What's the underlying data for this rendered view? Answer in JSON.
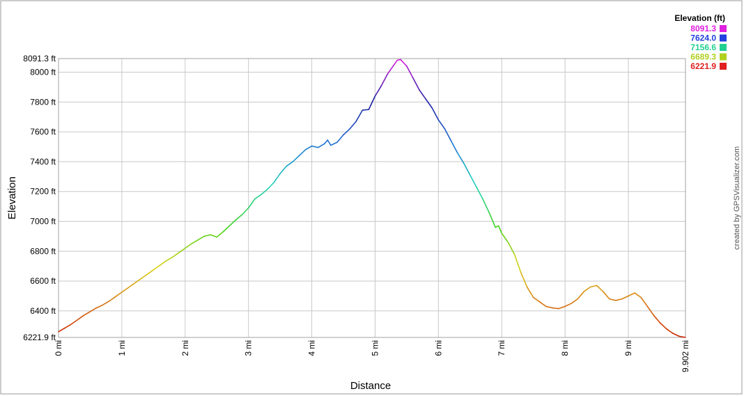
{
  "chart_data": {
    "type": "line",
    "title": "",
    "xlabel": "Distance",
    "ylabel": "Elevation",
    "xlim": [
      0,
      9.902
    ],
    "ylim": [
      6221.9,
      8091.3
    ],
    "grid": true,
    "x_ticks": [
      "0 mi",
      "1 mi",
      "2 mi",
      "3 mi",
      "4 mi",
      "5 mi",
      "6 mi",
      "7 mi",
      "8 mi",
      "9 mi",
      "9.902 mi"
    ],
    "x_tick_values": [
      0,
      1,
      2,
      3,
      4,
      5,
      6,
      7,
      8,
      9,
      9.902
    ],
    "y_ticks": [
      "6221.9 ft",
      "6400 ft",
      "6600 ft",
      "6800 ft",
      "7000 ft",
      "7200 ft",
      "7400 ft",
      "7600 ft",
      "7800 ft",
      "8000 ft",
      "8091.3 ft"
    ],
    "y_tick_values": [
      6221.9,
      6400,
      6600,
      6800,
      7000,
      7200,
      7400,
      7600,
      7800,
      8000,
      8091.3
    ],
    "legend": {
      "title": "Elevation (ft)",
      "position": "top-right",
      "entries": [
        {
          "label": "8091.3",
          "color": "#e020e0"
        },
        {
          "label": "7624.0",
          "color": "#2040e0"
        },
        {
          "label": "7156.6",
          "color": "#20d090"
        },
        {
          "label": "6689.3",
          "color": "#b0d020"
        },
        {
          "label": "6221.9",
          "color": "#e02020"
        }
      ]
    },
    "credit": "created by GPSVisualizer.com",
    "series": [
      {
        "x": [
          0,
          0.1,
          0.2,
          0.3,
          0.4,
          0.5,
          0.6,
          0.7,
          0.8,
          0.9,
          1.0,
          1.1,
          1.2,
          1.3,
          1.4,
          1.5,
          1.6,
          1.7,
          1.8,
          1.9,
          2.0,
          2.1,
          2.2,
          2.3,
          2.4,
          2.5,
          2.6,
          2.7,
          2.8,
          2.9,
          3.0,
          3.1,
          3.2,
          3.3,
          3.4,
          3.5,
          3.6,
          3.7,
          3.8,
          3.9,
          4.0,
          4.1,
          4.2,
          4.25,
          4.3,
          4.4,
          4.5,
          4.6,
          4.7,
          4.8,
          4.9,
          5.0,
          5.1,
          5.2,
          5.3,
          5.35,
          5.4,
          5.5,
          5.6,
          5.7,
          5.8,
          5.9,
          6.0,
          6.1,
          6.2,
          6.3,
          6.4,
          6.5,
          6.6,
          6.7,
          6.8,
          6.9,
          6.95,
          7.0,
          7.1,
          7.2,
          7.3,
          7.4,
          7.5,
          7.6,
          7.7,
          7.8,
          7.9,
          8.0,
          8.1,
          8.2,
          8.3,
          8.4,
          8.5,
          8.6,
          8.7,
          8.8,
          8.9,
          9.0,
          9.1,
          9.2,
          9.3,
          9.4,
          9.5,
          9.6,
          9.7,
          9.8,
          9.902
        ],
        "y": [
          6260,
          6285,
          6310,
          6340,
          6370,
          6395,
          6420,
          6440,
          6465,
          6495,
          6525,
          6555,
          6585,
          6615,
          6645,
          6675,
          6705,
          6735,
          6760,
          6790,
          6820,
          6850,
          6875,
          6900,
          6910,
          6895,
          6930,
          6970,
          7010,
          7045,
          7090,
          7150,
          7180,
          7215,
          7260,
          7320,
          7370,
          7400,
          7440,
          7480,
          7505,
          7495,
          7520,
          7545,
          7510,
          7530,
          7580,
          7620,
          7670,
          7745,
          7750,
          7840,
          7910,
          7990,
          8050,
          8080,
          8085,
          8040,
          7960,
          7880,
          7820,
          7760,
          7680,
          7620,
          7540,
          7460,
          7390,
          7310,
          7230,
          7150,
          7060,
          6960,
          6970,
          6920,
          6860,
          6780,
          6660,
          6560,
          6490,
          6460,
          6430,
          6420,
          6415,
          6430,
          6450,
          6480,
          6530,
          6560,
          6570,
          6530,
          6480,
          6470,
          6480,
          6500,
          6520,
          6490,
          6430,
          6370,
          6320,
          6280,
          6250,
          6230,
          6221.9
        ]
      }
    ]
  }
}
